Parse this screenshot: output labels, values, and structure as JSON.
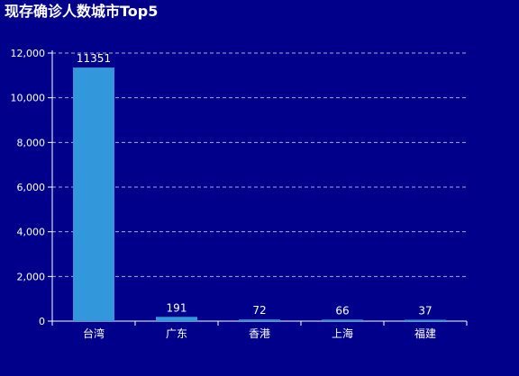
{
  "chart_data": {
    "type": "bar",
    "title": "现存确诊人数城市Top5",
    "categories": [
      "台湾",
      "广东",
      "香港",
      "上海",
      "福建"
    ],
    "values": [
      11351,
      191,
      72,
      66,
      37
    ],
    "ylim": [
      0,
      12000
    ],
    "yticks": [
      0,
      2000,
      4000,
      6000,
      8000,
      10000,
      12000
    ],
    "ytick_labels": [
      "0",
      "2,000",
      "4,000",
      "6,000",
      "8,000",
      "10,000",
      "12,000"
    ],
    "grid": true,
    "colors": {
      "background": "#00008b",
      "bar": "#3398db",
      "text": "#ffffff",
      "grid": "#c8c8e6"
    }
  }
}
